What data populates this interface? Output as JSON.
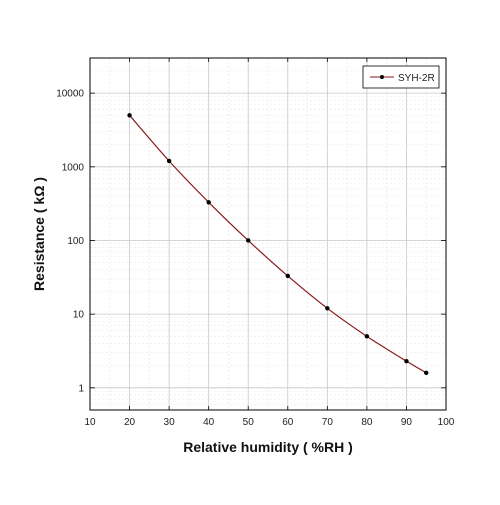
{
  "chart_data": {
    "type": "line",
    "xlabel": "Relative humidity ( %RH )",
    "ylabel": "Resistance ( kΩ )",
    "xlim": [
      10,
      100
    ],
    "xticks": [
      10,
      20,
      30,
      40,
      50,
      60,
      70,
      80,
      90,
      100
    ],
    "ylim": [
      0.5,
      30000
    ],
    "yscale": "log",
    "yticks": [
      1,
      10,
      100,
      1000,
      10000
    ],
    "ytick_labels": [
      "1",
      "10",
      "100",
      "1000",
      "10000"
    ],
    "grid": true,
    "legend_position": "top-right",
    "series": [
      {
        "name": "SYH-2R",
        "color": "#8b1a1a",
        "marker_color": "#000000",
        "x": [
          20,
          30,
          40,
          50,
          60,
          70,
          80,
          90,
          95
        ],
        "y": [
          5000,
          1200,
          330,
          100,
          33,
          12,
          5,
          2.3,
          1.6
        ]
      }
    ]
  }
}
